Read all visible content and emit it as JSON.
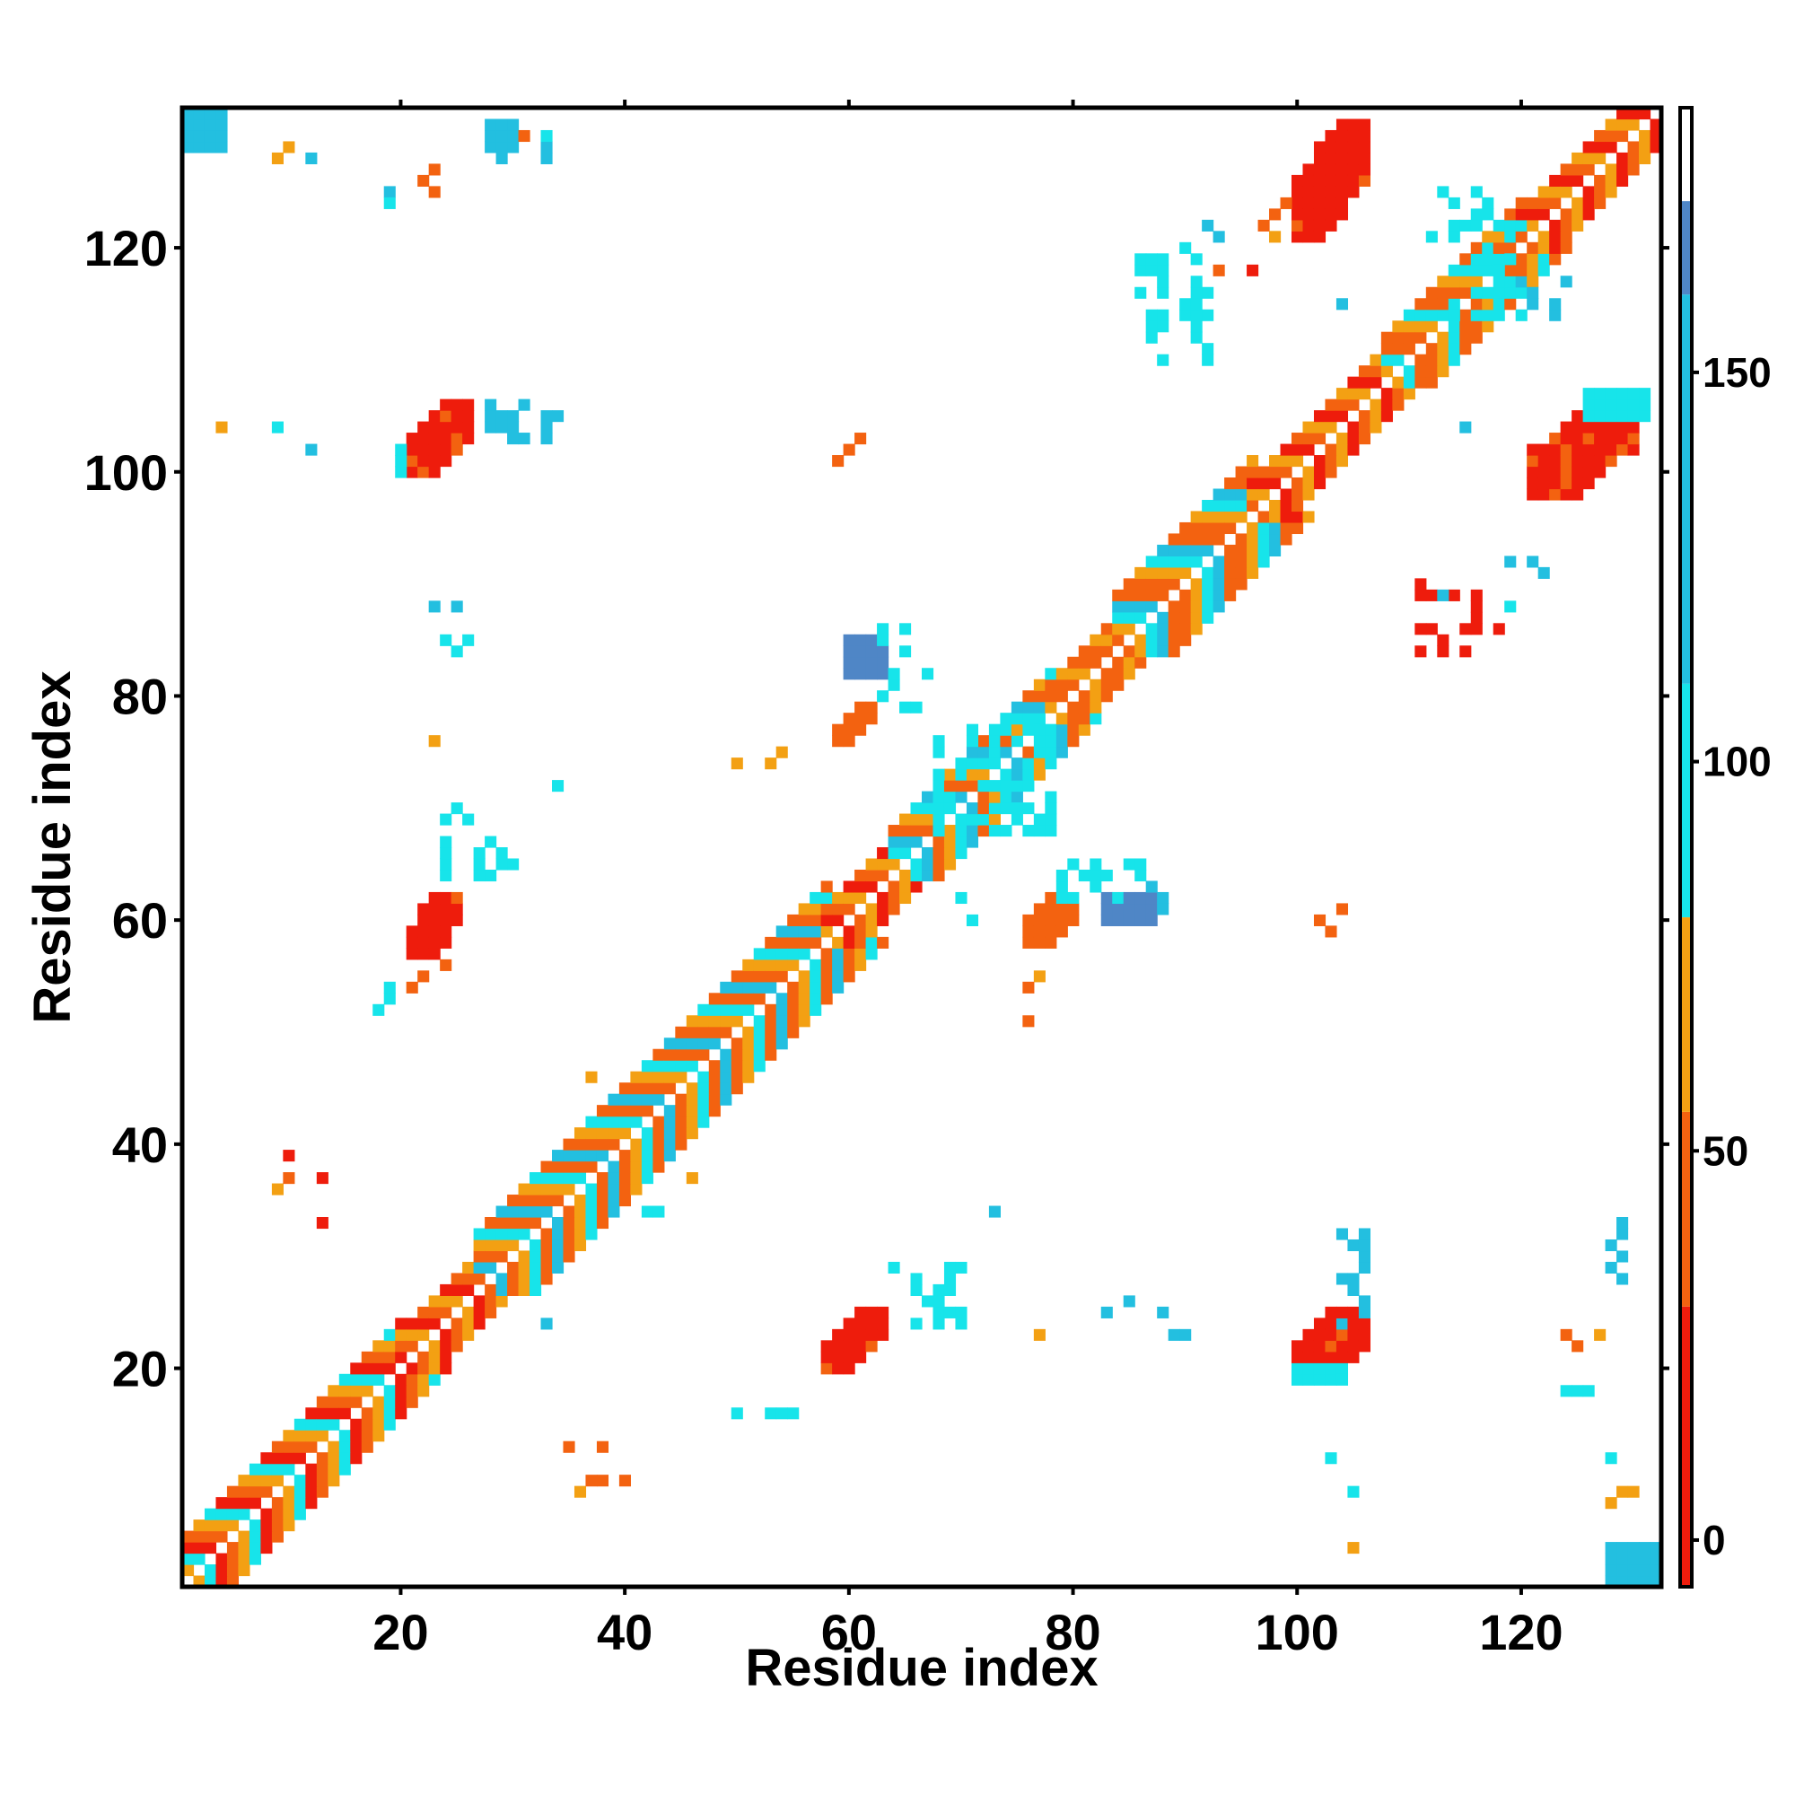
{
  "chart_data": {
    "type": "heatmap",
    "title": "",
    "xlabel": "Residue index",
    "ylabel": "Residue index",
    "xlim": [
      1,
      132
    ],
    "ylim": [
      1,
      132
    ],
    "x_ticks": [
      "20",
      "40",
      "60",
      "80",
      "100",
      "120"
    ],
    "y_ticks": [
      "20",
      "40",
      "60",
      "80",
      "100",
      "120"
    ],
    "grid": false,
    "legend": "colorbar-right",
    "colorbar": {
      "range": [
        -6,
        184
      ],
      "ticks": [
        "0",
        "50",
        "100",
        "150"
      ],
      "bands": [
        {
          "from": -6,
          "to": 30,
          "color": "#ee1c0c"
        },
        {
          "from": 30,
          "to": 55,
          "color": "#f36210"
        },
        {
          "from": 55,
          "to": 80,
          "color": "#f3a013"
        },
        {
          "from": 80,
          "to": 110,
          "color": "#17e4ea"
        },
        {
          "from": 110,
          "to": 160,
          "color": "#23bfe0"
        },
        {
          "from": 160,
          "to": 172,
          "color": "#4f86c6"
        },
        {
          "from": 172,
          "to": 184,
          "color": "#ffffff"
        }
      ]
    },
    "palette": {
      "R": "#ee1c0c",
      "O": "#f36210",
      "Y": "#f3a013",
      "C": "#17e4ea",
      "S": "#23bfe0",
      "B": "#4f86c6"
    },
    "diagonal_segments": [
      {
        "i0": 1,
        "i1": 20,
        "width": 4,
        "pattern": "R O Y C"
      },
      {
        "i0": 20,
        "i1": 27,
        "width": 3,
        "pattern": "R O Y"
      },
      {
        "i0": 27,
        "i1": 58,
        "width": 5,
        "pattern": "O Y C O S"
      },
      {
        "i0": 58,
        "i1": 64,
        "width": 3,
        "pattern": "R O Y"
      },
      {
        "i0": 64,
        "i1": 78,
        "width": 4,
        "pattern": "O Y C S"
      },
      {
        "i0": 78,
        "i1": 84,
        "width": 3,
        "pattern": "O Y O"
      },
      {
        "i0": 84,
        "i1": 96,
        "width": 5,
        "pattern": "O Y C S O"
      },
      {
        "i0": 96,
        "i1": 108,
        "width": 3,
        "pattern": "R O Y"
      },
      {
        "i0": 108,
        "i1": 120,
        "width": 4,
        "pattern": "O Y C O"
      },
      {
        "i0": 120,
        "i1": 132,
        "width": 3,
        "pattern": "R O Y"
      }
    ],
    "blocks": [
      {
        "x0": 58,
        "x1": 63,
        "y0": 20,
        "y1": 25,
        "color": "R",
        "shape": "anti"
      },
      {
        "x0": 100,
        "x1": 106,
        "y0": 19,
        "y1": 25,
        "color": "R",
        "shape": "anti"
      },
      {
        "x0": 21,
        "x1": 25,
        "y0": 57,
        "y1": 62,
        "color": "R",
        "shape": "anti"
      },
      {
        "x0": 21,
        "x1": 26,
        "y0": 100,
        "y1": 106,
        "color": "R",
        "shape": "anti"
      },
      {
        "x0": 59,
        "x1": 62,
        "y0": 76,
        "y1": 79,
        "color": "O",
        "shape": "anti"
      },
      {
        "x0": 76,
        "x1": 80,
        "y0": 58,
        "y1": 62,
        "color": "O",
        "shape": "anti"
      },
      {
        "x0": 100,
        "x1": 106,
        "y0": 121,
        "y1": 131,
        "color": "R",
        "shape": "anti"
      },
      {
        "x0": 121,
        "x1": 130,
        "y0": 98,
        "y1": 106,
        "color": "R",
        "shape": "anti"
      },
      {
        "x0": 100,
        "x1": 104,
        "y0": 19,
        "y1": 20,
        "color": "C",
        "shape": "rect"
      },
      {
        "x0": 20,
        "x1": 20,
        "y0": 100,
        "y1": 102,
        "color": "C",
        "shape": "rect"
      },
      {
        "x0": 126,
        "x1": 131,
        "y0": 105,
        "y1": 107,
        "color": "C",
        "shape": "rect"
      },
      {
        "x0": 1,
        "x1": 4,
        "y0": 129,
        "y1": 132,
        "color": "S",
        "shape": "rect"
      },
      {
        "x0": 128,
        "x1": 132,
        "y0": 1,
        "y1": 4,
        "color": "S",
        "shape": "rect"
      },
      {
        "x0": 60,
        "x1": 63,
        "y0": 82,
        "y1": 85,
        "color": "B",
        "shape": "rect"
      },
      {
        "x0": 83,
        "x1": 87,
        "y0": 60,
        "y1": 62,
        "color": "B",
        "shape": "rect"
      },
      {
        "x0": 112,
        "x1": 120,
        "y0": 114,
        "y1": 125,
        "color": "C",
        "shape": "scatter"
      },
      {
        "x0": 86,
        "x1": 92,
        "y0": 110,
        "y1": 119,
        "color": "C",
        "shape": "scatter"
      },
      {
        "x0": 111,
        "x1": 116,
        "y0": 84,
        "y1": 90,
        "color": "R",
        "shape": "scatter"
      },
      {
        "x0": 64,
        "x1": 70,
        "y0": 24,
        "y1": 30,
        "color": "C",
        "shape": "scatter"
      },
      {
        "x0": 24,
        "x1": 30,
        "y0": 64,
        "y1": 70,
        "color": "C",
        "shape": "scatter"
      },
      {
        "x0": 104,
        "x1": 106,
        "y0": 24,
        "y1": 33,
        "color": "S",
        "shape": "scatter"
      },
      {
        "x0": 25,
        "x1": 33,
        "y0": 103,
        "y1": 106,
        "color": "S",
        "shape": "scatter"
      },
      {
        "x0": 63,
        "x1": 66,
        "y0": 79,
        "y1": 86,
        "color": "C",
        "shape": "scatter"
      },
      {
        "x0": 79,
        "x1": 86,
        "y0": 62,
        "y1": 65,
        "color": "C",
        "shape": "scatter"
      },
      {
        "x0": 68,
        "x1": 78,
        "y0": 68,
        "y1": 78,
        "color": "C",
        "shape": "scatter"
      },
      {
        "x0": 120,
        "x1": 124,
        "y0": 113,
        "y1": 117,
        "color": "S",
        "shape": "scatter"
      },
      {
        "x0": 128,
        "x1": 130,
        "y0": 28,
        "y1": 34,
        "color": "S",
        "shape": "scatter"
      },
      {
        "x0": 28,
        "x1": 34,
        "y0": 128,
        "y1": 131,
        "color": "S",
        "shape": "scatter"
      }
    ],
    "points": [
      [
        9,
        128,
        "Y"
      ],
      [
        10,
        129,
        "Y"
      ],
      [
        12,
        128,
        "S"
      ],
      [
        19,
        125,
        "S"
      ],
      [
        19,
        124,
        "C"
      ],
      [
        22,
        126,
        "O"
      ],
      [
        23,
        125,
        "O"
      ],
      [
        23,
        127,
        "O"
      ],
      [
        29,
        131,
        "S"
      ],
      [
        30,
        130,
        "S"
      ],
      [
        31,
        130,
        "O"
      ],
      [
        33,
        130,
        "C"
      ],
      [
        4,
        104,
        "Y"
      ],
      [
        9,
        104,
        "C"
      ],
      [
        12,
        102,
        "S"
      ],
      [
        34,
        105,
        "S"
      ],
      [
        59,
        101,
        "O"
      ],
      [
        60,
        102,
        "O"
      ],
      [
        61,
        103,
        "O"
      ],
      [
        23,
        88,
        "S"
      ],
      [
        25,
        88,
        "S"
      ],
      [
        24,
        85,
        "C"
      ],
      [
        26,
        85,
        "C"
      ],
      [
        25,
        84,
        "C"
      ],
      [
        67,
        82,
        "C"
      ],
      [
        23,
        76,
        "Y"
      ],
      [
        34,
        72,
        "C"
      ],
      [
        50,
        74,
        "Y"
      ],
      [
        53,
        74,
        "Y"
      ],
      [
        54,
        75,
        "Y"
      ],
      [
        19,
        54,
        "C"
      ],
      [
        19,
        53,
        "C"
      ],
      [
        18,
        52,
        "C"
      ],
      [
        21,
        54,
        "O"
      ],
      [
        22,
        55,
        "O"
      ],
      [
        24,
        56,
        "O"
      ],
      [
        76,
        54,
        "O"
      ],
      [
        77,
        55,
        "Y"
      ],
      [
        76,
        51,
        "O"
      ],
      [
        82,
        63,
        "C"
      ],
      [
        87,
        63,
        "S"
      ],
      [
        88,
        62,
        "S"
      ],
      [
        88,
        61,
        "S"
      ],
      [
        71,
        60,
        "C"
      ],
      [
        70,
        62,
        "C"
      ],
      [
        10,
        39,
        "R"
      ],
      [
        9,
        36,
        "Y"
      ],
      [
        10,
        37,
        "O"
      ],
      [
        13,
        37,
        "R"
      ],
      [
        13,
        33,
        "R"
      ],
      [
        37,
        46,
        "Y"
      ],
      [
        46,
        37,
        "Y"
      ],
      [
        42,
        34,
        "C"
      ],
      [
        43,
        34,
        "C"
      ],
      [
        73,
        34,
        "S"
      ],
      [
        33,
        24,
        "S"
      ],
      [
        77,
        23,
        "Y"
      ],
      [
        83,
        25,
        "S"
      ],
      [
        85,
        26,
        "S"
      ],
      [
        88,
        25,
        "S"
      ],
      [
        89,
        23,
        "S"
      ],
      [
        90,
        23,
        "S"
      ],
      [
        50,
        16,
        "C"
      ],
      [
        53,
        16,
        "C"
      ],
      [
        54,
        16,
        "C"
      ],
      [
        55,
        16,
        "C"
      ],
      [
        35,
        13,
        "O"
      ],
      [
        38,
        13,
        "O"
      ],
      [
        37,
        10,
        "O"
      ],
      [
        38,
        10,
        "O"
      ],
      [
        36,
        9,
        "Y"
      ],
      [
        40,
        10,
        "O"
      ],
      [
        103,
        12,
        "C"
      ],
      [
        105,
        9,
        "C"
      ],
      [
        105,
        4,
        "Y"
      ],
      [
        124,
        18,
        "C"
      ],
      [
        125,
        18,
        "C"
      ],
      [
        126,
        18,
        "C"
      ],
      [
        124,
        23,
        "O"
      ],
      [
        125,
        22,
        "O"
      ],
      [
        127,
        23,
        "Y"
      ],
      [
        128,
        12,
        "C"
      ],
      [
        128,
        8,
        "Y"
      ],
      [
        129,
        9,
        "Y"
      ],
      [
        130,
        9,
        "Y"
      ],
      [
        102,
        60,
        "O"
      ],
      [
        103,
        59,
        "O"
      ],
      [
        104,
        61,
        "O"
      ],
      [
        100,
        96,
        "R"
      ],
      [
        115,
        104,
        "S"
      ],
      [
        113,
        89,
        "S"
      ],
      [
        119,
        92,
        "S"
      ],
      [
        121,
        92,
        "S"
      ],
      [
        122,
        91,
        "S"
      ],
      [
        119,
        88,
        "C"
      ],
      [
        118,
        86,
        "R"
      ],
      [
        96,
        118,
        "R"
      ],
      [
        104,
        115,
        "S"
      ],
      [
        92,
        122,
        "S"
      ],
      [
        93,
        121,
        "S"
      ],
      [
        93,
        118,
        "O"
      ],
      [
        90,
        120,
        "C"
      ],
      [
        97,
        122,
        "O"
      ],
      [
        98,
        123,
        "O"
      ],
      [
        99,
        124,
        "O"
      ],
      [
        98,
        121,
        "Y"
      ]
    ]
  }
}
